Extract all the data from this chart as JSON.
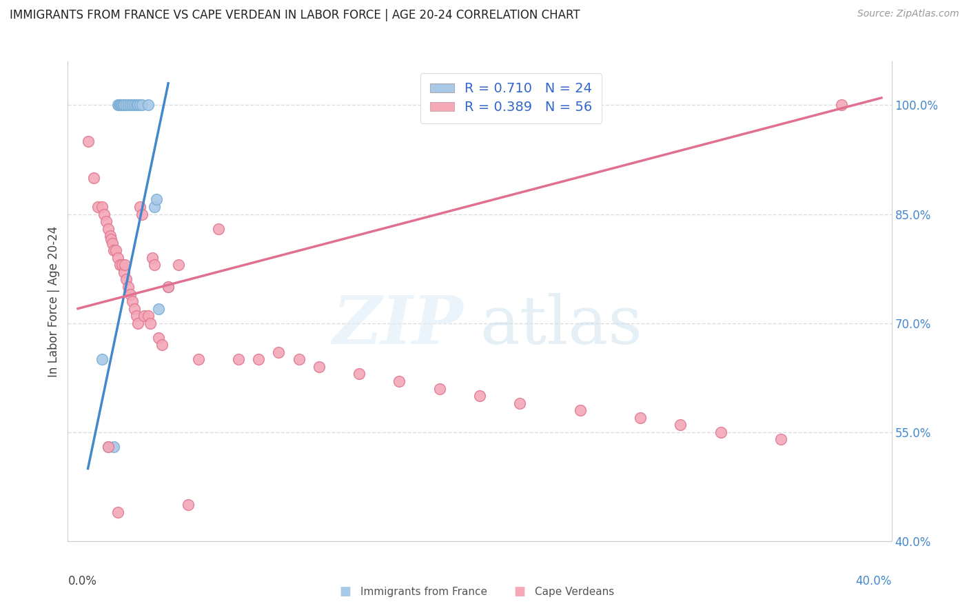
{
  "title": "IMMIGRANTS FROM FRANCE VS CAPE VERDEAN IN LABOR FORCE | AGE 20-24 CORRELATION CHART",
  "source": "Source: ZipAtlas.com",
  "ylabel": "In Labor Force | Age 20-24",
  "yticks": [
    40.0,
    55.0,
    70.0,
    85.0,
    100.0
  ],
  "ytick_labels": [
    "40.0%",
    "55.0%",
    "70.0%",
    "85.0%",
    "100.0%"
  ],
  "xmin": 0.0,
  "xmax": 40.0,
  "ymin": 40.0,
  "ymax": 106.0,
  "france_color": "#a8c8e8",
  "france_edge_color": "#7aaed4",
  "cape_verde_color": "#f4a8b8",
  "cape_verde_edge_color": "#e07890",
  "france_line_color": "#4488cc",
  "cape_line_color": "#e07090",
  "legend_label_france": "R = 0.710   N = 24",
  "legend_label_cape": "R = 0.389   N = 56",
  "bottom_legend_france": "Immigrants from France",
  "bottom_legend_cape": "Cape Verdeans",
  "france_x": [
    1.2,
    1.5,
    1.8,
    2.0,
    2.05,
    2.1,
    2.15,
    2.2,
    2.25,
    2.3,
    2.4,
    2.5,
    2.6,
    2.7,
    2.8,
    2.9,
    3.0,
    3.1,
    3.2,
    3.5,
    3.8,
    3.9,
    4.0,
    4.5
  ],
  "france_y": [
    65.0,
    53.0,
    53.0,
    100.0,
    100.0,
    100.0,
    100.0,
    100.0,
    100.0,
    100.0,
    100.0,
    100.0,
    100.0,
    100.0,
    100.0,
    100.0,
    100.0,
    100.0,
    100.0,
    100.0,
    86.0,
    87.0,
    72.0,
    75.0
  ],
  "cape_x": [
    0.5,
    0.8,
    1.0,
    1.2,
    1.3,
    1.4,
    1.5,
    1.6,
    1.65,
    1.7,
    1.8,
    1.9,
    2.0,
    2.1,
    2.2,
    2.3,
    2.35,
    2.4,
    2.5,
    2.6,
    2.7,
    2.8,
    2.9,
    3.0,
    3.1,
    3.2,
    3.3,
    3.5,
    3.6,
    3.7,
    3.8,
    4.0,
    4.2,
    4.5,
    5.0,
    5.5,
    6.0,
    7.0,
    8.0,
    9.0,
    10.0,
    11.0,
    12.0,
    14.0,
    16.0,
    18.0,
    20.0,
    22.0,
    25.0,
    28.0,
    30.0,
    32.0,
    35.0,
    38.0,
    1.5,
    2.0
  ],
  "cape_y": [
    95.0,
    90.0,
    86.0,
    86.0,
    85.0,
    84.0,
    83.0,
    82.0,
    81.5,
    81.0,
    80.0,
    80.0,
    79.0,
    78.0,
    78.0,
    77.0,
    78.0,
    76.0,
    75.0,
    74.0,
    73.0,
    72.0,
    71.0,
    70.0,
    86.0,
    85.0,
    71.0,
    71.0,
    70.0,
    79.0,
    78.0,
    68.0,
    67.0,
    75.0,
    78.0,
    45.0,
    65.0,
    83.0,
    65.0,
    65.0,
    66.0,
    65.0,
    64.0,
    63.0,
    62.0,
    61.0,
    60.0,
    59.0,
    58.0,
    57.0,
    56.0,
    55.0,
    54.0,
    100.0,
    53.0,
    44.0
  ],
  "france_line_x1": 0.5,
  "france_line_y1": 50.0,
  "france_line_x2": 4.5,
  "france_line_y2": 103.0,
  "cape_line_x1": 0.0,
  "cape_line_y1": 72.0,
  "cape_line_x2": 40.0,
  "cape_line_y2": 101.0
}
